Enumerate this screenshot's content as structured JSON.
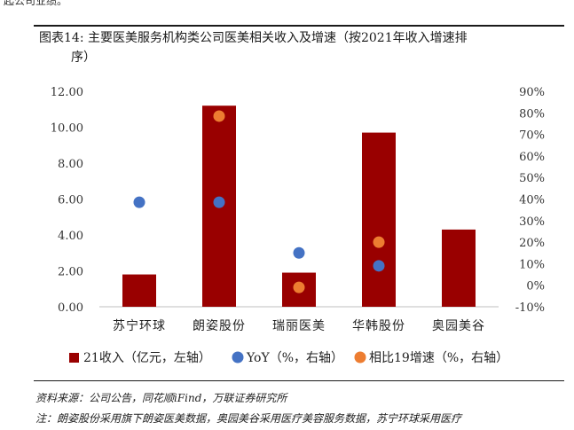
{
  "header": {
    "fragment": "起公司业绩。",
    "title_line1": "图表14:  主要医美服务机构类公司医美相关收入及增速（按2021年收入增速排",
    "title_line2": "序）"
  },
  "footer": {
    "source": "资料来源：公司公告，同花顺iFind，万联证券研究所",
    "note": "注：朗姿股份采用旗下朗姿医美数据，奥园美谷采用医疗美容服务数据，苏宁环球采用医疗"
  },
  "colors": {
    "bar": "#990000",
    "yoy": "#4472C4",
    "vs19": "#ED7D31"
  },
  "chart_data": {
    "type": "bar",
    "categories": [
      "苏宁环球",
      "朗姿股份",
      "瑞丽医美",
      "华韩股份",
      "奥园美谷"
    ],
    "series": [
      {
        "name": "21收入（亿元，左轴）",
        "kind": "bar",
        "axis": "left",
        "values": [
          1.8,
          11.2,
          1.9,
          9.7,
          4.3
        ]
      },
      {
        "name": "YoY（%，右轴）",
        "kind": "scatter",
        "axis": "right",
        "values": [
          38.5,
          38.5,
          15,
          null,
          null
        ],
        "extra": [
          {
            "category": "华韩股份",
            "value": 9
          }
        ]
      },
      {
        "name": "相比19增速（%，右轴）",
        "kind": "scatter",
        "axis": "right",
        "values": [
          null,
          78.5,
          -1,
          20,
          null
        ]
      }
    ],
    "left_axis": {
      "ylim": [
        0,
        12
      ],
      "ticks": [
        "0.00",
        "2.00",
        "4.00",
        "6.00",
        "8.00",
        "10.00",
        "12.00"
      ]
    },
    "right_axis": {
      "ylim": [
        -10,
        90
      ],
      "ticks": [
        "-10%",
        "0%",
        "10%",
        "20%",
        "30%",
        "40%",
        "50%",
        "60%",
        "70%",
        "80%",
        "90%"
      ]
    },
    "grid": false,
    "legend": "bottom"
  }
}
